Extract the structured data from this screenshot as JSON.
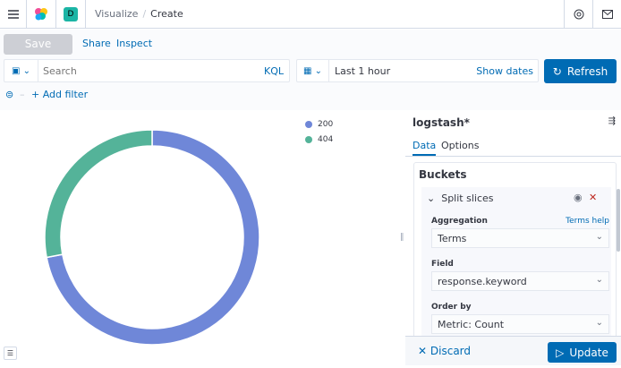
{
  "header": {
    "breadcrumbs": [
      "Visualize",
      "Create"
    ],
    "space_initial": "D",
    "space_color": "#1bb5a5"
  },
  "toolbar": {
    "save_label": "Save",
    "share_label": "Share",
    "inspect_label": "Inspect"
  },
  "query": {
    "placeholder": "Search",
    "language": "KQL",
    "time": "Last 1 hour",
    "show_dates": "Show dates",
    "refresh": "Refresh",
    "add_filter": "+ Add filter"
  },
  "chart_data": {
    "type": "pie",
    "donut": true,
    "categories": [
      "200",
      "404"
    ],
    "values": [
      72,
      28
    ],
    "colors": [
      "#6f87d8",
      "#54b399"
    ],
    "legend": "top-right"
  },
  "panel": {
    "index": "logstash*",
    "tabs": [
      "Data",
      "Options"
    ],
    "active_tab": "Data",
    "section": "Buckets",
    "agg_title": "Split slices",
    "aggregation_label": "Aggregation",
    "aggregation_help": "Terms help",
    "aggregation_value": "Terms",
    "field_label": "Field",
    "field_value": "response.keyword",
    "order_label": "Order by",
    "order_value": "Metric: Count",
    "discard": "Discard",
    "update": "Update"
  }
}
